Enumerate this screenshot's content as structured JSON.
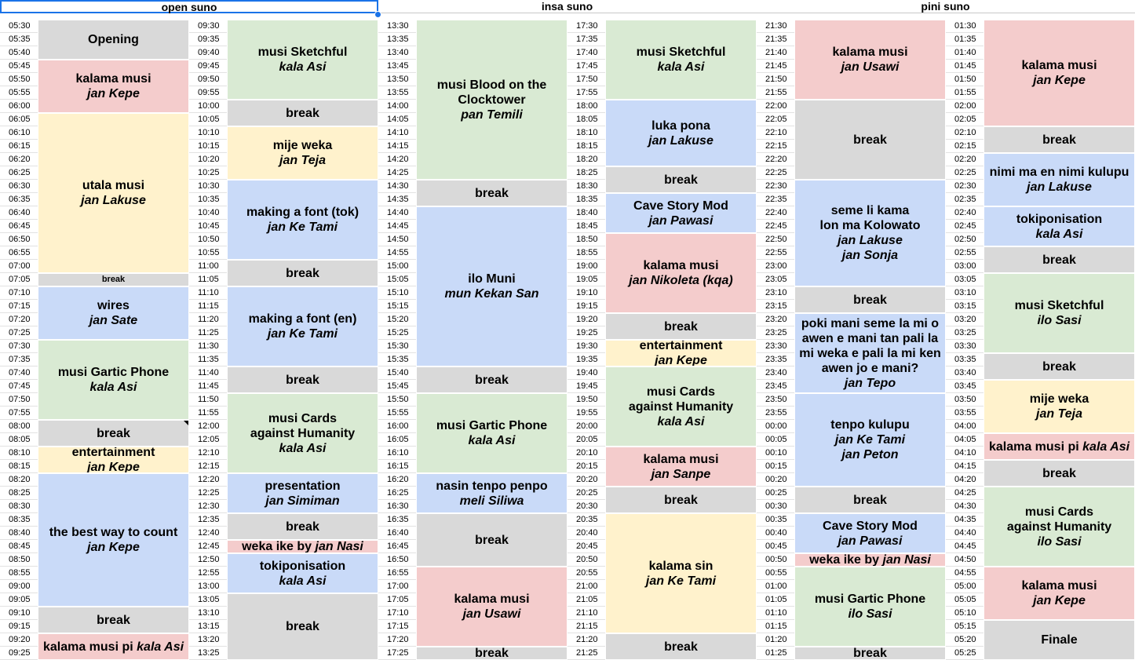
{
  "headers": [
    "open suno",
    "insa suno",
    "pini suno"
  ],
  "columns": [
    {
      "start": "05:30",
      "times": [
        "05:30",
        "05:35",
        "05:40",
        "05:45",
        "05:50",
        "05:55",
        "06:00",
        "06:05",
        "06:10",
        "06:15",
        "06:20",
        "06:25",
        "06:30",
        "06:35",
        "06:40",
        "06:45",
        "06:50",
        "06:55",
        "07:00",
        "07:05",
        "07:10",
        "07:15",
        "07:20",
        "07:25",
        "07:30",
        "07:35",
        "07:40",
        "07:45",
        "07:50",
        "07:55",
        "08:00",
        "08:05",
        "08:10",
        "08:15",
        "08:20",
        "08:25",
        "08:30",
        "08:35",
        "08:40",
        "08:45",
        "08:50",
        "08:55",
        "09:00",
        "09:05",
        "09:10",
        "09:15",
        "09:20",
        "09:25"
      ],
      "events": [
        {
          "start": 0,
          "span": 3,
          "color": "gray",
          "title": "Opening",
          "sub": ""
        },
        {
          "start": 3,
          "span": 4,
          "color": "red",
          "title": "kalama musi",
          "sub": "jan Kepe"
        },
        {
          "start": 7,
          "span": 12,
          "color": "yellow",
          "title": "utala musi",
          "sub": "jan Lakuse"
        },
        {
          "start": 19,
          "span": 1,
          "color": "gray",
          "title": "break",
          "sub": "",
          "small": true
        },
        {
          "start": 20,
          "span": 4,
          "color": "blue",
          "title": "wires",
          "sub": "jan Sate"
        },
        {
          "start": 24,
          "span": 6,
          "color": "green",
          "title": "musi Gartic Phone",
          "sub": "kala Asi"
        },
        {
          "start": 30,
          "span": 2,
          "color": "gray",
          "title": "break",
          "sub": ""
        },
        {
          "start": 32,
          "span": 2,
          "color": "yellow",
          "title": "entertainment",
          "sub": "jan Kepe"
        },
        {
          "start": 34,
          "span": 10,
          "color": "blue",
          "title": "the best way to count",
          "sub": "jan Kepe"
        },
        {
          "start": 44,
          "span": 2,
          "color": "gray",
          "title": "break",
          "sub": ""
        },
        {
          "start": 46,
          "span": 2,
          "color": "red",
          "title": "kalama musi pi",
          "sub": "kala Asi",
          "inline": true
        }
      ]
    },
    {
      "start": "09:30",
      "times": [
        "09:30",
        "09:35",
        "09:40",
        "09:45",
        "09:50",
        "09:55",
        "10:00",
        "10:05",
        "10:10",
        "10:15",
        "10:20",
        "10:25",
        "10:30",
        "10:35",
        "10:40",
        "10:45",
        "10:50",
        "10:55",
        "11:00",
        "11:05",
        "11:10",
        "11:15",
        "11:20",
        "11:25",
        "11:30",
        "11:35",
        "11:40",
        "11:45",
        "11:50",
        "11:55",
        "12:00",
        "12:05",
        "12:10",
        "12:15",
        "12:20",
        "12:25",
        "12:30",
        "12:35",
        "12:40",
        "12:45",
        "12:50",
        "12:55",
        "13:00",
        "13:05",
        "13:10",
        "13:15",
        "13:20",
        "13:25"
      ],
      "events": [
        {
          "start": 0,
          "span": 6,
          "color": "green",
          "title": "musi Sketchful",
          "sub": "kala Asi"
        },
        {
          "start": 6,
          "span": 2,
          "color": "gray",
          "title": "break",
          "sub": ""
        },
        {
          "start": 8,
          "span": 4,
          "color": "yellow",
          "title": "mije weka",
          "sub": "jan Teja"
        },
        {
          "start": 12,
          "span": 6,
          "color": "blue",
          "title": "making a font (tok)",
          "sub": "jan Ke Tami"
        },
        {
          "start": 18,
          "span": 2,
          "color": "gray",
          "title": "break",
          "sub": ""
        },
        {
          "start": 20,
          "span": 6,
          "color": "blue",
          "title": "making a font (en)",
          "sub": "jan Ke Tami"
        },
        {
          "start": 26,
          "span": 2,
          "color": "gray",
          "title": "break",
          "sub": ""
        },
        {
          "start": 28,
          "span": 6,
          "color": "green",
          "title": "musi Cards\nagainst Humanity",
          "sub": "kala Asi"
        },
        {
          "start": 34,
          "span": 3,
          "color": "blue",
          "title": "presentation",
          "sub": "jan Simiman"
        },
        {
          "start": 37,
          "span": 2,
          "color": "gray",
          "title": "break",
          "sub": ""
        },
        {
          "start": 39,
          "span": 1,
          "color": "red",
          "title": "weka ike by",
          "sub": "jan Nasi",
          "small": true,
          "inline": true
        },
        {
          "start": 40,
          "span": 3,
          "color": "blue",
          "title": "tokiponisation",
          "sub": "kala Asi"
        },
        {
          "start": 43,
          "span": 5,
          "color": "gray",
          "title": "break",
          "sub": ""
        }
      ]
    },
    {
      "start": "13:30",
      "times": [
        "13:30",
        "13:35",
        "13:40",
        "13:45",
        "13:50",
        "13:55",
        "14:00",
        "14:05",
        "14:10",
        "14:15",
        "14:20",
        "14:25",
        "14:30",
        "14:35",
        "14:40",
        "14:45",
        "14:50",
        "14:55",
        "15:00",
        "15:05",
        "15:10",
        "15:15",
        "15:20",
        "15:25",
        "15:30",
        "15:35",
        "15:40",
        "15:45",
        "15:50",
        "15:55",
        "16:00",
        "16:05",
        "16:10",
        "16:15",
        "16:20",
        "16:25",
        "16:30",
        "16:35",
        "16:40",
        "16:45",
        "16:50",
        "16:55",
        "17:00",
        "17:05",
        "17:10",
        "17:15",
        "17:20",
        "17:25"
      ],
      "events": [
        {
          "start": 0,
          "span": 12,
          "color": "green",
          "title": "musi Blood on the\nClocktower",
          "sub": "pan Temili"
        },
        {
          "start": 12,
          "span": 2,
          "color": "gray",
          "title": "break",
          "sub": ""
        },
        {
          "start": 14,
          "span": 12,
          "color": "blue",
          "title": "ilo Muni",
          "sub": "mun Kekan San"
        },
        {
          "start": 26,
          "span": 2,
          "color": "gray",
          "title": "break",
          "sub": ""
        },
        {
          "start": 28,
          "span": 6,
          "color": "green",
          "title": "musi Gartic Phone",
          "sub": "kala Asi"
        },
        {
          "start": 34,
          "span": 3,
          "color": "blue",
          "title": "nasin tenpo penpo",
          "sub": "meli Siliwa"
        },
        {
          "start": 37,
          "span": 4,
          "color": "gray",
          "title": "break",
          "sub": ""
        },
        {
          "start": 41,
          "span": 6,
          "color": "red",
          "title": "kalama musi",
          "sub": "jan Usawi"
        },
        {
          "start": 47,
          "span": 1,
          "color": "gray",
          "title": "break",
          "sub": ""
        }
      ]
    },
    {
      "start": "17:30",
      "times": [
        "17:30",
        "17:35",
        "17:40",
        "17:45",
        "17:50",
        "17:55",
        "18:00",
        "18:05",
        "18:10",
        "18:15",
        "18:20",
        "18:25",
        "18:30",
        "18:35",
        "18:40",
        "18:45",
        "18:50",
        "18:55",
        "19:00",
        "19:05",
        "19:10",
        "19:15",
        "19:20",
        "19:25",
        "19:30",
        "19:35",
        "19:40",
        "19:45",
        "19:50",
        "19:55",
        "20:00",
        "20:05",
        "20:10",
        "20:15",
        "20:20",
        "20:25",
        "20:30",
        "20:35",
        "20:40",
        "20:45",
        "20:50",
        "20:55",
        "21:00",
        "21:05",
        "21:10",
        "21:15",
        "21:20",
        "21:25"
      ],
      "events": [
        {
          "start": 0,
          "span": 6,
          "color": "green",
          "title": "musi Sketchful",
          "sub": "kala Asi"
        },
        {
          "start": 6,
          "span": 5,
          "color": "blue",
          "title": "luka pona",
          "sub": "jan Lakuse"
        },
        {
          "start": 11,
          "span": 2,
          "color": "gray",
          "title": "break",
          "sub": ""
        },
        {
          "start": 13,
          "span": 3,
          "color": "blue",
          "title": "Cave Story Mod",
          "sub": "jan Pawasi"
        },
        {
          "start": 16,
          "span": 6,
          "color": "red",
          "title": "kalama musi",
          "sub": "jan Nikoleta (kqa)"
        },
        {
          "start": 22,
          "span": 2,
          "color": "gray",
          "title": "break",
          "sub": ""
        },
        {
          "start": 24,
          "span": 2,
          "color": "yellow",
          "title": "entertainment",
          "sub": "jan Kepe"
        },
        {
          "start": 26,
          "span": 6,
          "color": "green",
          "title": "musi Cards\nagainst Humanity",
          "sub": "kala Asi"
        },
        {
          "start": 32,
          "span": 3,
          "color": "red",
          "title": "kalama musi",
          "sub": "jan Sanpe"
        },
        {
          "start": 35,
          "span": 2,
          "color": "gray",
          "title": "break",
          "sub": ""
        },
        {
          "start": 37,
          "span": 9,
          "color": "yellow",
          "title": "kalama sin",
          "sub": "jan Ke Tami"
        },
        {
          "start": 46,
          "span": 2,
          "color": "gray",
          "title": "break",
          "sub": ""
        }
      ]
    },
    {
      "start": "21:30",
      "times": [
        "21:30",
        "21:35",
        "21:40",
        "21:45",
        "21:50",
        "21:55",
        "22:00",
        "22:05",
        "22:10",
        "22:15",
        "22:20",
        "22:25",
        "22:30",
        "22:35",
        "22:40",
        "22:45",
        "22:50",
        "22:55",
        "23:00",
        "23:05",
        "23:10",
        "23:15",
        "23:20",
        "23:25",
        "23:30",
        "23:35",
        "23:40",
        "23:45",
        "23:50",
        "23:55",
        "00:00",
        "00:05",
        "00:10",
        "00:15",
        "00:20",
        "00:25",
        "00:30",
        "00:35",
        "00:40",
        "00:45",
        "00:50",
        "00:55",
        "01:00",
        "01:05",
        "01:10",
        "01:15",
        "01:20",
        "01:25"
      ],
      "events": [
        {
          "start": 0,
          "span": 6,
          "color": "red",
          "title": "kalama musi",
          "sub": "jan Usawi"
        },
        {
          "start": 6,
          "span": 6,
          "color": "gray",
          "title": "break",
          "sub": ""
        },
        {
          "start": 12,
          "span": 8,
          "color": "blue",
          "title": "seme li kama\nlon ma Kolowato\n ",
          "sub": "jan Lakuse\njan Sonja"
        },
        {
          "start": 20,
          "span": 2,
          "color": "gray",
          "title": "break",
          "sub": ""
        },
        {
          "start": 22,
          "span": 6,
          "color": "blue",
          "title": "poki mani seme la mi o\nawen e mani tan pali la\nmi weka e pali la mi ken\nawen jo e mani?",
          "sub": "jan Tepo"
        },
        {
          "start": 28,
          "span": 7,
          "color": "blue",
          "title": "tenpo kulupu\n ",
          "sub": "jan Ke Tami\njan Peton"
        },
        {
          "start": 35,
          "span": 2,
          "color": "gray",
          "title": "break",
          "sub": ""
        },
        {
          "start": 37,
          "span": 3,
          "color": "blue",
          "title": "Cave Story Mod",
          "sub": "jan Pawasi"
        },
        {
          "start": 40,
          "span": 1,
          "color": "red",
          "title": "weka ike by",
          "sub": "jan Nasi",
          "small": true,
          "inline": true
        },
        {
          "start": 41,
          "span": 6,
          "color": "green",
          "title": "musi Gartic Phone",
          "sub": "ilo Sasi"
        },
        {
          "start": 47,
          "span": 1,
          "color": "gray",
          "title": "break",
          "sub": ""
        }
      ]
    },
    {
      "start": "01:30",
      "times": [
        "01:30",
        "01:35",
        "01:40",
        "01:45",
        "01:50",
        "01:55",
        "02:00",
        "02:05",
        "02:10",
        "02:15",
        "02:20",
        "02:25",
        "02:30",
        "02:35",
        "02:40",
        "02:45",
        "02:50",
        "02:55",
        "03:00",
        "03:05",
        "03:10",
        "03:15",
        "03:20",
        "03:25",
        "03:30",
        "03:35",
        "03:40",
        "03:45",
        "03:50",
        "03:55",
        "04:00",
        "04:05",
        "04:10",
        "04:15",
        "04:20",
        "04:25",
        "04:30",
        "04:35",
        "04:40",
        "04:45",
        "04:50",
        "04:55",
        "05:00",
        "05:05",
        "05:10",
        "05:15",
        "05:20",
        "05:25"
      ],
      "events": [
        {
          "start": 0,
          "span": 8,
          "color": "red",
          "title": "kalama musi",
          "sub": "jan Kepe"
        },
        {
          "start": 8,
          "span": 2,
          "color": "gray",
          "title": "break",
          "sub": ""
        },
        {
          "start": 10,
          "span": 4,
          "color": "blue",
          "title": "nimi ma en nimi kulupu",
          "sub": "jan Lakuse"
        },
        {
          "start": 14,
          "span": 3,
          "color": "blue",
          "title": "tokiponisation",
          "sub": "kala Asi"
        },
        {
          "start": 17,
          "span": 2,
          "color": "gray",
          "title": "break",
          "sub": ""
        },
        {
          "start": 19,
          "span": 6,
          "color": "green",
          "title": "musi Sketchful",
          "sub": "ilo Sasi"
        },
        {
          "start": 25,
          "span": 2,
          "color": "gray",
          "title": "break",
          "sub": ""
        },
        {
          "start": 27,
          "span": 4,
          "color": "yellow",
          "title": "mije weka",
          "sub": "jan Teja"
        },
        {
          "start": 31,
          "span": 2,
          "color": "red",
          "title": "kalama musi pi",
          "sub": "kala Asi",
          "inline": true
        },
        {
          "start": 33,
          "span": 2,
          "color": "gray",
          "title": "break",
          "sub": ""
        },
        {
          "start": 35,
          "span": 6,
          "color": "green",
          "title": "musi Cards\nagainst Humanity",
          "sub": "ilo Sasi"
        },
        {
          "start": 41,
          "span": 4,
          "color": "red",
          "title": "kalama musi",
          "sub": "jan Kepe"
        },
        {
          "start": 45,
          "span": 3,
          "color": "gray",
          "title": "Finale",
          "sub": ""
        }
      ]
    }
  ],
  "colors": {
    "gray": "#d9d9d9",
    "red": "#f4cccc",
    "yellow": "#fff2cc",
    "blue": "#c9daf8",
    "green": "#d9ead3",
    "selection": "#1a73e8"
  }
}
